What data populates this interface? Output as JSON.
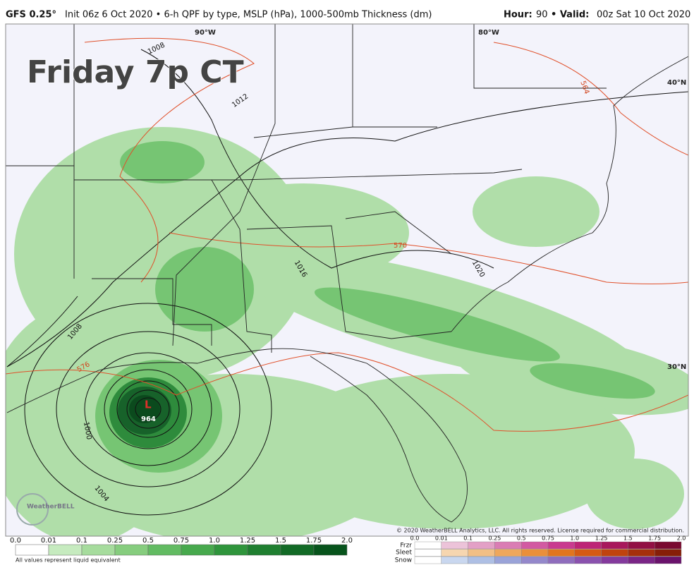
{
  "header": {
    "left": {
      "model": "GFS 0.25°",
      "details": "Init 06z 6 Oct 2020 • 6-h QPF by type, MSLP (hPa), 1000-500mb Thickness (dm)"
    },
    "right": {
      "hour_label": "Hour:",
      "hour": "90",
      "valid_label": "• Valid:",
      "valid": "00z Sat 10 Oct 2020"
    }
  },
  "map": {
    "title": "Friday 7p CT",
    "grid_labels": [
      "90°W",
      "80°W",
      "40°N",
      "30°N"
    ],
    "isobar_labels": [
      "1008",
      "1012",
      "1016",
      "1020",
      "1008",
      "1000",
      "1004"
    ],
    "thickness_labels": [
      "564",
      "570",
      "576"
    ],
    "low": {
      "symbol": "L",
      "pressure": "964"
    },
    "logo": "WeatherBELL",
    "copyright": "© 2020 WeatherBELL Analytics, LLC. All rights reserved. License required for commercial distribution."
  },
  "legend": {
    "rain": {
      "ticks": [
        "0.0",
        "0.01",
        "0.1",
        "0.25",
        "0.5",
        "0.75",
        "1.0",
        "1.25",
        "1.5",
        "1.75",
        "2.0"
      ],
      "note": "All values represent liquid equivalent"
    },
    "mixed": {
      "ticks": [
        "0.0",
        "0.01",
        "0.1",
        "0.25",
        "0.5",
        "0.75",
        "1.0",
        "1.25",
        "1.5",
        "1.75",
        "2.0"
      ],
      "rows": [
        "Frzr",
        "Sleet",
        "Snow"
      ]
    }
  }
}
